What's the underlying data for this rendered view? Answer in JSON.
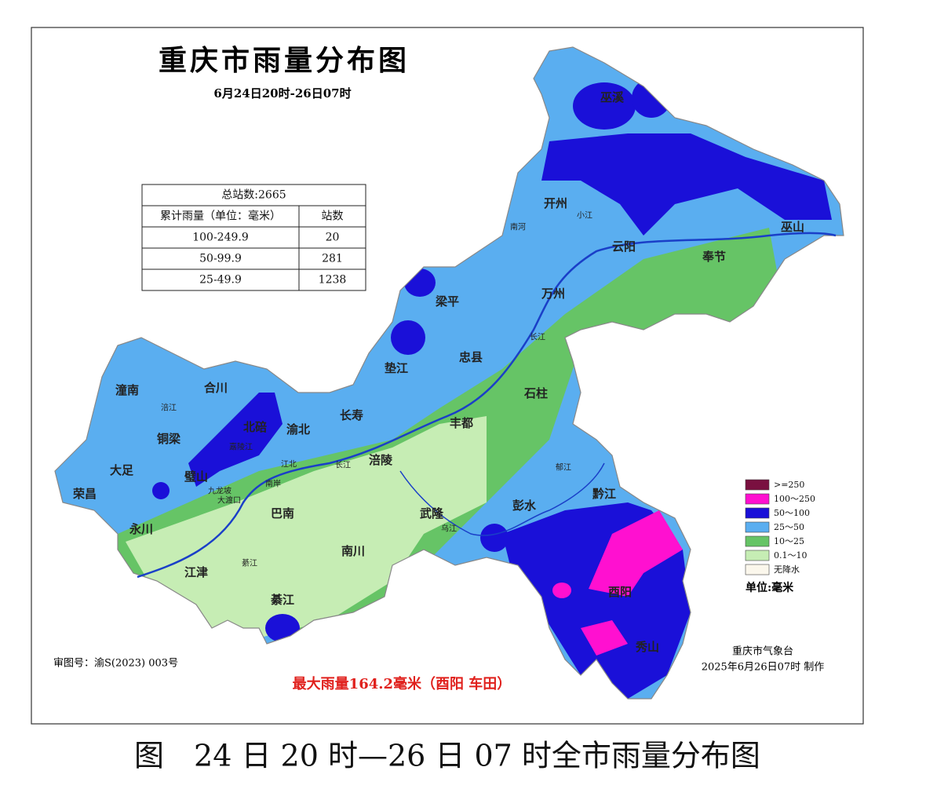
{
  "title": "重庆市雨量分布图",
  "subtitle": "6月24日20时-26日07时",
  "stats_table": {
    "title": "总站数:2665",
    "header": [
      "累计雨量（单位：毫米）",
      "站数"
    ],
    "rows": [
      [
        "100-249.9",
        20
      ],
      [
        "50-99.9",
        281
      ],
      [
        "25-49.9",
        1238
      ]
    ]
  },
  "legend": {
    "items": [
      {
        "label": ">=250",
        "color": "#7a1040"
      },
      {
        "label": "100～250",
        "color": "#ff10d0"
      },
      {
        "label": "50～100",
        "color": "#1a10d8"
      },
      {
        "label": "25～50",
        "color": "#5aaef0"
      },
      {
        "label": "10～25",
        "color": "#66c466"
      },
      {
        "label": "0.1～10",
        "color": "#c6edb4"
      },
      {
        "label": "无降水",
        "color": "#fbf7ec"
      }
    ],
    "unit": "单位:毫米"
  },
  "places": [
    "巫溪",
    "巫山",
    "奉节",
    "云阳",
    "开州",
    "万州",
    "梁平",
    "忠县",
    "垫江",
    "石柱",
    "丰都",
    "长寿",
    "涪陵",
    "武隆",
    "彭水",
    "黔江",
    "酉阳",
    "秀山",
    "潼南",
    "合川",
    "铜梁",
    "大足",
    "荣昌",
    "永川",
    "江津",
    "巴南",
    "南川",
    "綦江",
    "璧山",
    "北碚",
    "渝北"
  ],
  "rivers": [
    "长江",
    "长江",
    "乌江",
    "小江",
    "南河",
    "涪江",
    "嘉陵江",
    "綦江",
    "郁江",
    "九龙坡",
    "大渡口",
    "南岸",
    "江北"
  ],
  "approval": "审图号：渝S(2023) 003号",
  "max_rain": "最大雨量164.2毫米（酉阳 车田）",
  "producer": [
    "重庆市气象台",
    "2025年6月26日07时 制作"
  ],
  "caption": "图　24 日 20 时—26 日 07 时全市雨量分布图"
}
